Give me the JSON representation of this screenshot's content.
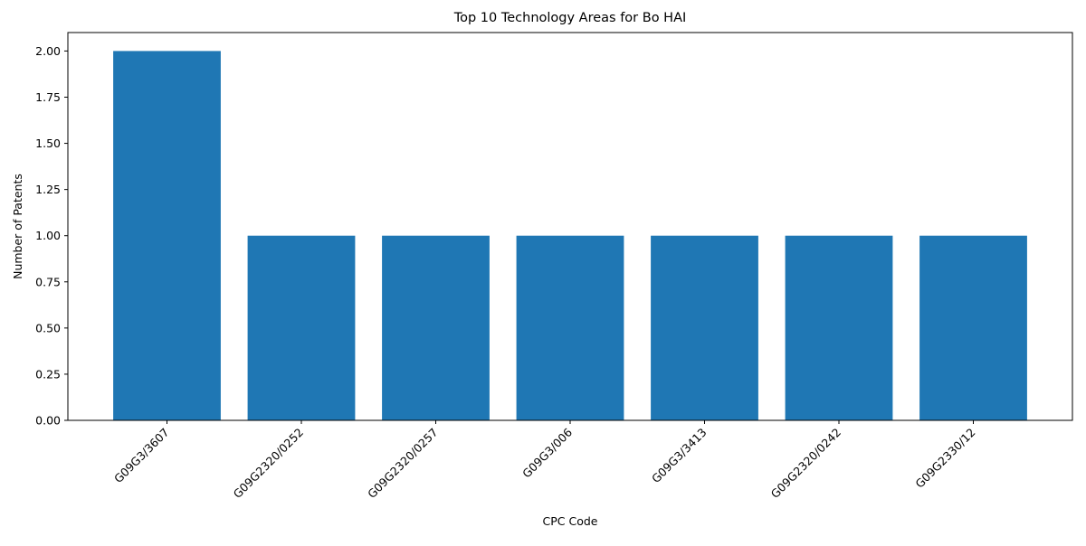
{
  "chart_data": {
    "type": "bar",
    "title": "Top 10 Technology Areas for Bo HAI",
    "xlabel": "CPC Code",
    "ylabel": "Number of Patents",
    "categories": [
      "G09G3/3607",
      "G09G2320/0252",
      "G09G2320/0257",
      "G09G3/006",
      "G09G3/3413",
      "G09G2320/0242",
      "G09G2330/12"
    ],
    "values": [
      2,
      1,
      1,
      1,
      1,
      1,
      1
    ],
    "ylim": [
      0,
      2.1
    ],
    "yticks": [
      "0.00",
      "0.25",
      "0.50",
      "0.75",
      "1.00",
      "1.25",
      "1.50",
      "1.75",
      "2.00"
    ],
    "grid": false,
    "legend": "none",
    "bar_color": "#1f77b4"
  }
}
